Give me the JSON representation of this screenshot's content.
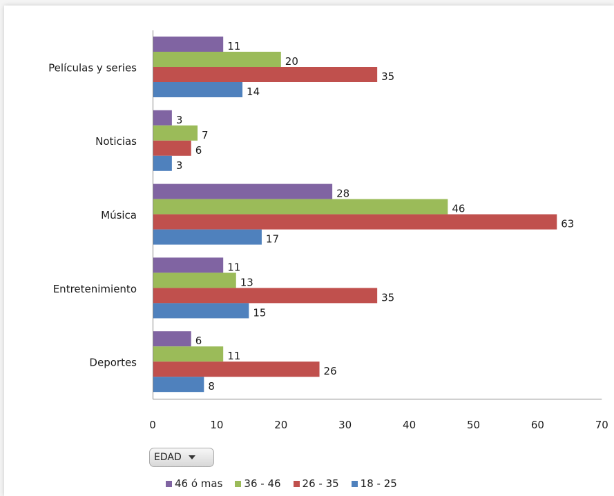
{
  "chart_data": {
    "type": "bar",
    "orientation": "horizontal",
    "categories": [
      "Películas y series",
      "Noticias",
      "Música",
      "Entretenimiento",
      "Deportes"
    ],
    "series": [
      {
        "name": "46 ó mas",
        "color": "#8064a2",
        "values": [
          11,
          3,
          28,
          11,
          6
        ]
      },
      {
        "name": "36 - 46",
        "color": "#9bbb59",
        "values": [
          20,
          7,
          46,
          13,
          11
        ]
      },
      {
        "name": "26 - 35",
        "color": "#c0504d",
        "values": [
          35,
          6,
          63,
          35,
          26
        ]
      },
      {
        "name": "18 - 25",
        "color": "#4f81bd",
        "values": [
          14,
          3,
          17,
          15,
          8
        ]
      }
    ],
    "xlim": [
      0,
      70
    ],
    "xticks": [
      "0",
      "10",
      "20",
      "30",
      "40",
      "50",
      "60",
      "70"
    ],
    "grid": false,
    "legend_position": "bottom"
  },
  "filter_button": {
    "label": "EDAD"
  }
}
